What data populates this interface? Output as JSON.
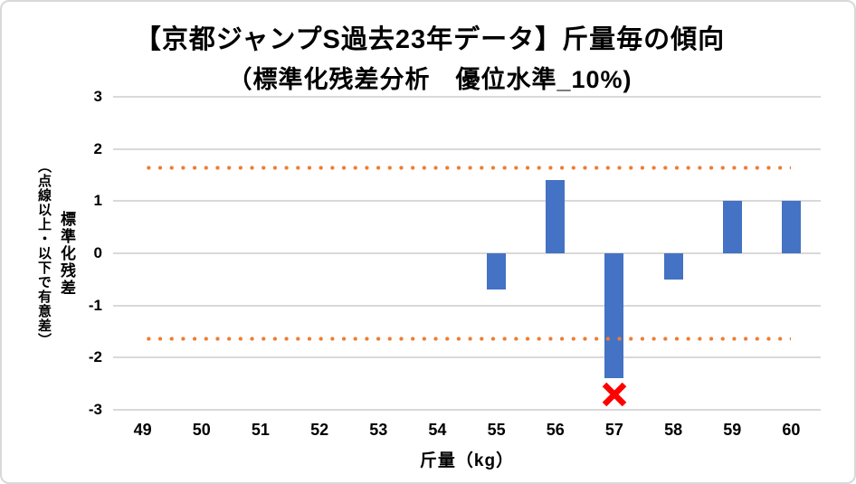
{
  "chart_data": {
    "type": "bar",
    "title_line1": "【京都ジャンプS過去23年データ】斤量毎の傾向",
    "title_line2": "（標準化残差分析　優位水準_10%)",
    "xlabel": "斤量（kg）",
    "ylabel_main": "標準化残差",
    "ylabel_sub": "（点線以上・以下で有意差）",
    "categories": [
      "49",
      "50",
      "51",
      "52",
      "53",
      "54",
      "55",
      "56",
      "57",
      "58",
      "59",
      "60"
    ],
    "values": [
      null,
      null,
      null,
      null,
      null,
      null,
      -0.7,
      1.4,
      -2.4,
      -0.5,
      1.0,
      1.0
    ],
    "ylim": [
      -3,
      3
    ],
    "yticks": [
      3,
      2,
      1,
      0,
      -1,
      -2,
      -3
    ],
    "grid": true,
    "legend": false,
    "significance_lines": {
      "upper": 1.645,
      "lower": -1.645,
      "style": "dotted",
      "color": "#ED7D31",
      "x_start_category": "49",
      "x_end_category": "60"
    },
    "marker": {
      "category": "57",
      "value": -2.7,
      "symbol": "x-cross",
      "color": "#FF0000"
    },
    "colors": {
      "bar": "#4472C4",
      "gridline": "#D9D9D9",
      "text": "#000000",
      "border": "#D9D9D9",
      "background": "#FFFFFF"
    }
  }
}
